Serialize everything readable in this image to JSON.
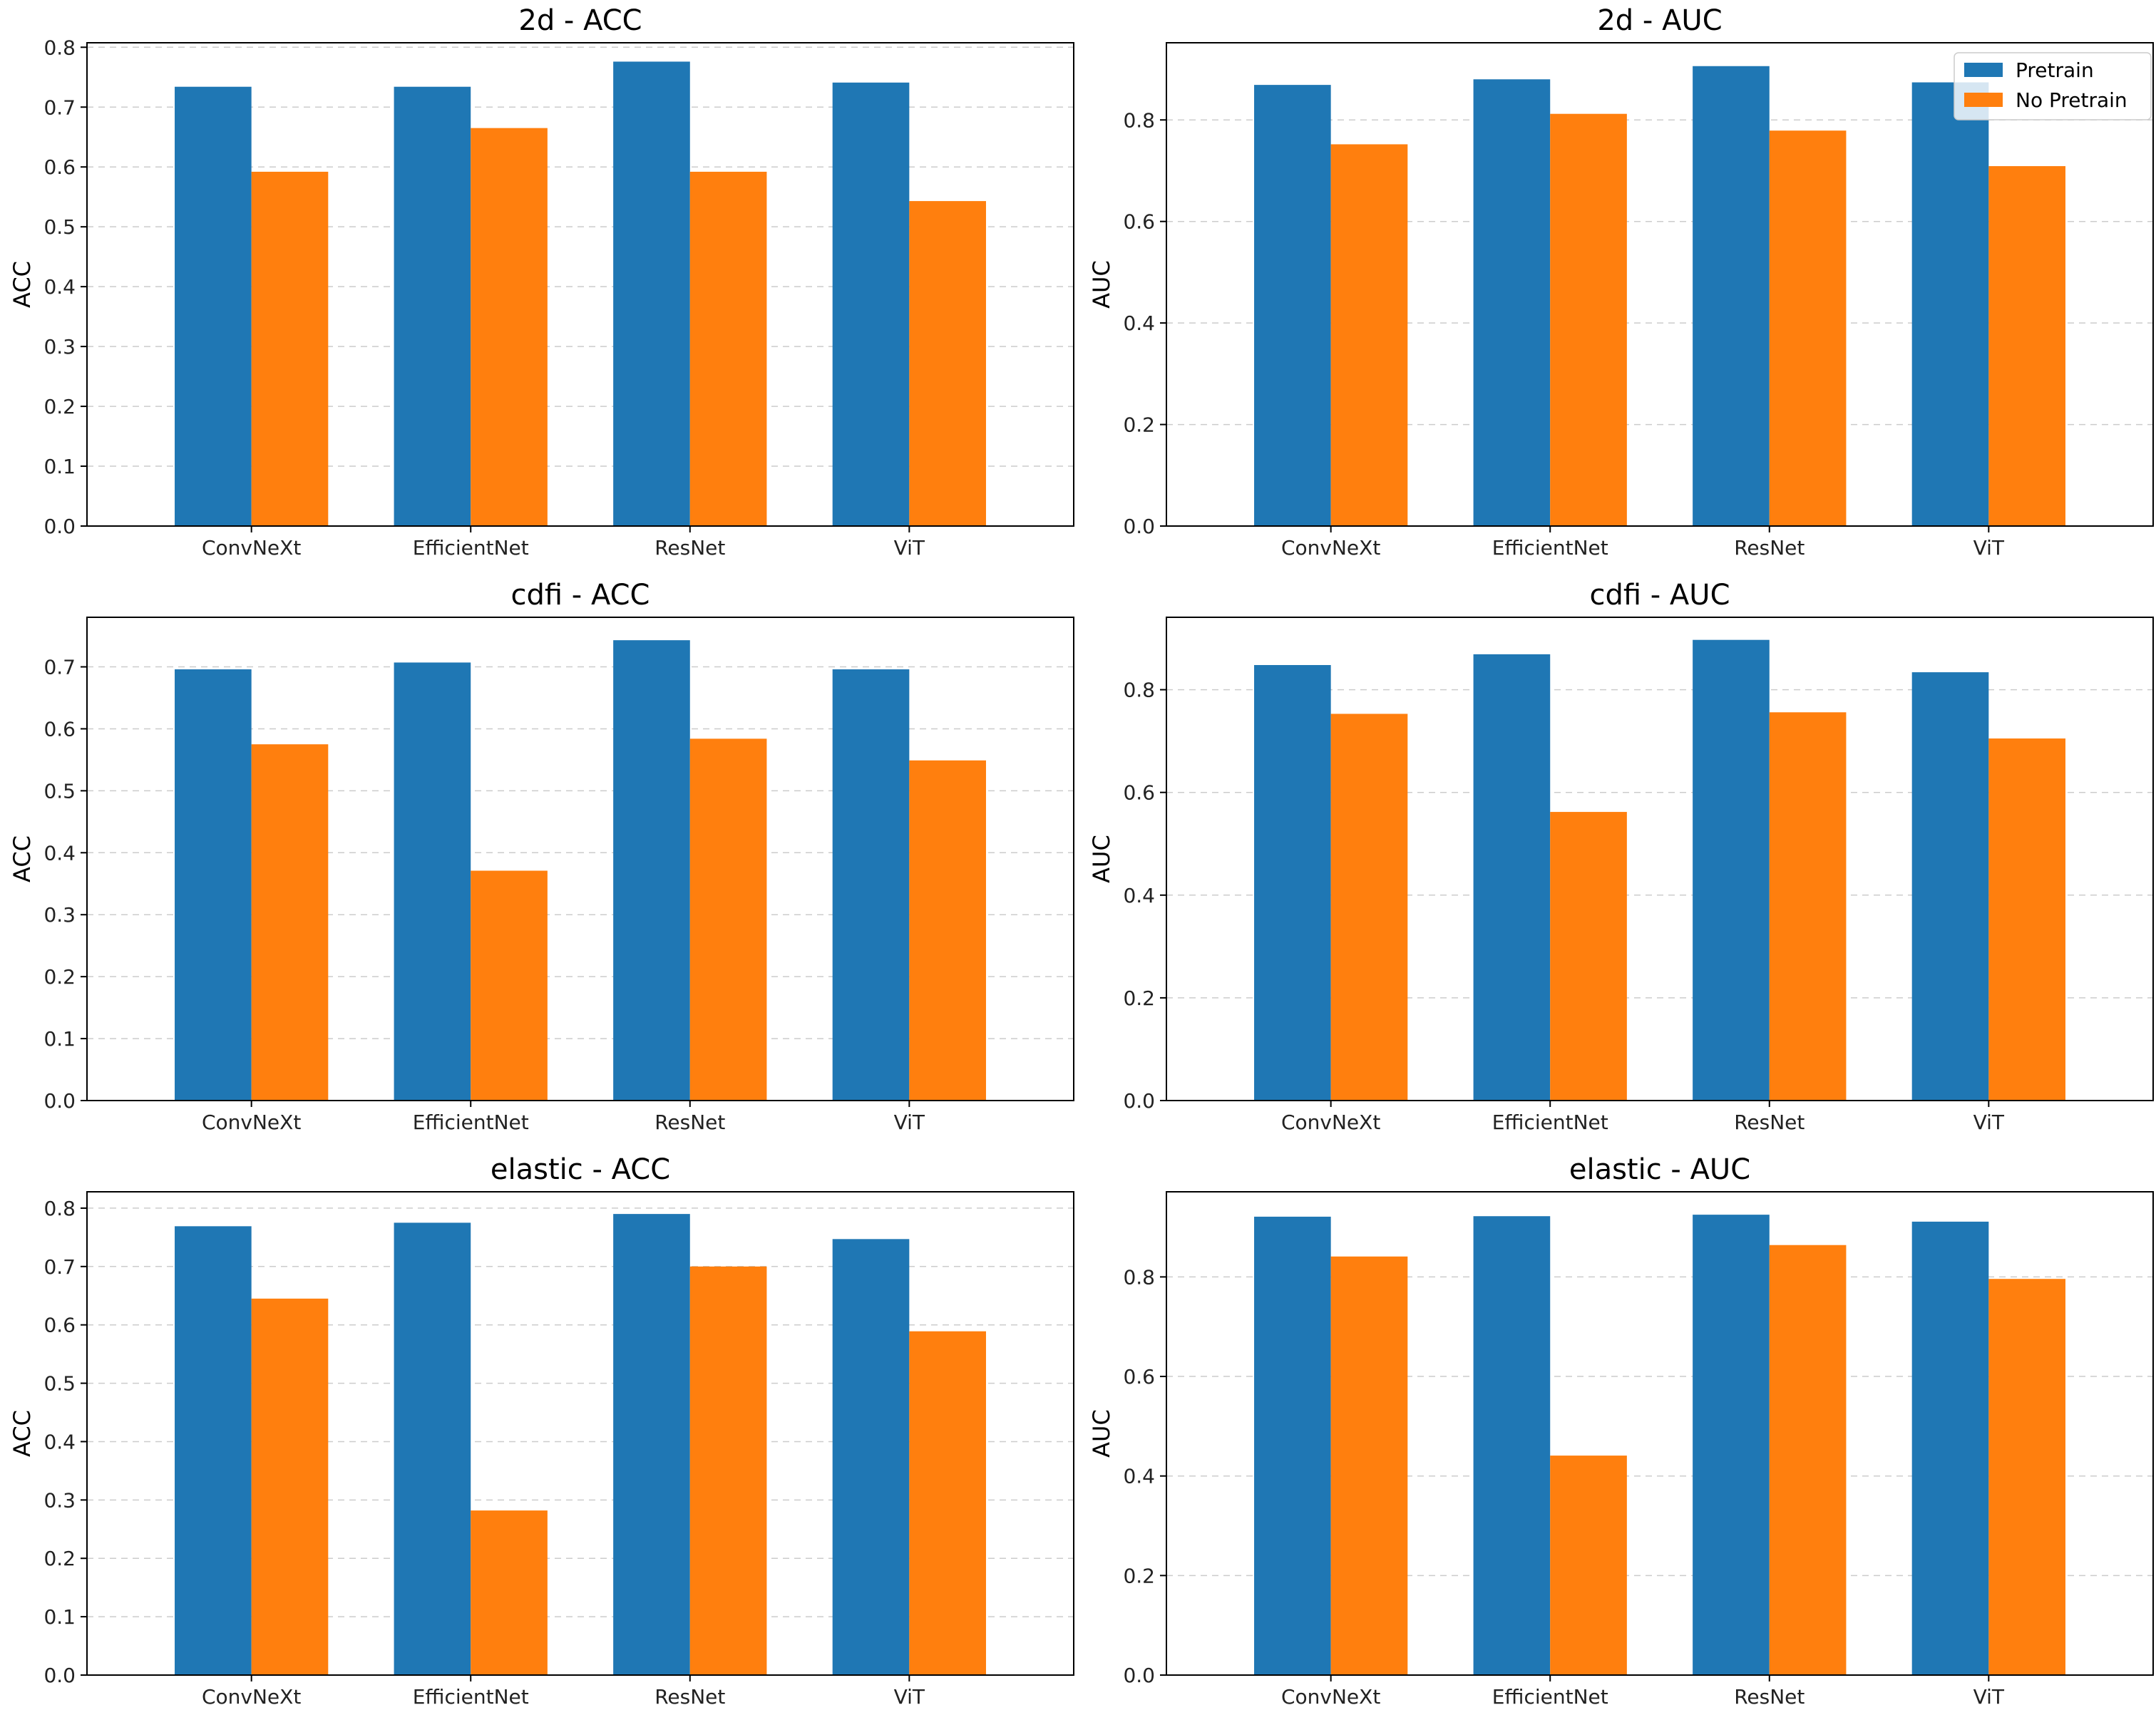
{
  "colors": {
    "pretrain": "#1f77b4",
    "no_pretrain": "#ff7f0e"
  },
  "legend": {
    "placement": "top-right",
    "panel": 1,
    "entries": [
      "Pretrain",
      "No Pretrain"
    ]
  },
  "chart_data": [
    {
      "type": "bar",
      "title": "2d - ACC",
      "xlabel": "",
      "ylabel": "ACC",
      "categories": [
        "ConvNeXt",
        "EfficientNet",
        "ResNet",
        "ViT"
      ],
      "ylim": [
        0,
        0.8075
      ],
      "yticks": [
        0.0,
        0.1,
        0.2,
        0.3,
        0.4,
        0.5,
        0.6,
        0.7,
        0.8
      ],
      "ytick_labels": [
        "0.0",
        "0.1",
        "0.2",
        "0.3",
        "0.4",
        "0.5",
        "0.6",
        "0.7",
        "0.8"
      ],
      "grid": "y-dashed",
      "series": [
        {
          "name": "Pretrain",
          "values": [
            0.734,
            0.734,
            0.776,
            0.741
          ]
        },
        {
          "name": "No Pretrain",
          "values": [
            0.592,
            0.665,
            0.592,
            0.543
          ]
        }
      ]
    },
    {
      "type": "bar",
      "title": "2d - AUC",
      "xlabel": "",
      "ylabel": "AUC",
      "categories": [
        "ConvNeXt",
        "EfficientNet",
        "ResNet",
        "ViT"
      ],
      "ylim": [
        0,
        0.952
      ],
      "yticks": [
        0.0,
        0.2,
        0.4,
        0.6,
        0.8
      ],
      "ytick_labels": [
        "0.0",
        "0.2",
        "0.4",
        "0.6",
        "0.8"
      ],
      "grid": "y-dashed",
      "series": [
        {
          "name": "Pretrain",
          "values": [
            0.869,
            0.88,
            0.906,
            0.874
          ]
        },
        {
          "name": "No Pretrain",
          "values": [
            0.752,
            0.812,
            0.779,
            0.709
          ]
        }
      ]
    },
    {
      "type": "bar",
      "title": "cdfi - ACC",
      "xlabel": "",
      "ylabel": "ACC",
      "categories": [
        "ConvNeXt",
        "EfficientNet",
        "ResNet",
        "ViT"
      ],
      "ylim": [
        0,
        0.78
      ],
      "yticks": [
        0.0,
        0.1,
        0.2,
        0.3,
        0.4,
        0.5,
        0.6,
        0.7
      ],
      "ytick_labels": [
        "0.0",
        "0.1",
        "0.2",
        "0.3",
        "0.4",
        "0.5",
        "0.6",
        "0.7"
      ],
      "grid": "y-dashed",
      "series": [
        {
          "name": "Pretrain",
          "values": [
            0.696,
            0.707,
            0.743,
            0.696
          ]
        },
        {
          "name": "No Pretrain",
          "values": [
            0.575,
            0.371,
            0.584,
            0.549
          ]
        }
      ]
    },
    {
      "type": "bar",
      "title": "cdfi - AUC",
      "xlabel": "",
      "ylabel": "AUC",
      "categories": [
        "ConvNeXt",
        "EfficientNet",
        "ResNet",
        "ViT"
      ],
      "ylim": [
        0,
        0.941
      ],
      "yticks": [
        0.0,
        0.2,
        0.4,
        0.6,
        0.8
      ],
      "ytick_labels": [
        "0.0",
        "0.2",
        "0.4",
        "0.6",
        "0.8"
      ],
      "grid": "y-dashed",
      "series": [
        {
          "name": "Pretrain",
          "values": [
            0.848,
            0.869,
            0.897,
            0.834
          ]
        },
        {
          "name": "No Pretrain",
          "values": [
            0.753,
            0.562,
            0.756,
            0.705
          ]
        }
      ]
    },
    {
      "type": "bar",
      "title": "elastic - ACC",
      "xlabel": "",
      "ylabel": "ACC",
      "categories": [
        "ConvNeXt",
        "EfficientNet",
        "ResNet",
        "ViT"
      ],
      "ylim": [
        0,
        0.828
      ],
      "yticks": [
        0.0,
        0.1,
        0.2,
        0.3,
        0.4,
        0.5,
        0.6,
        0.7,
        0.8
      ],
      "ytick_labels": [
        "0.0",
        "0.1",
        "0.2",
        "0.3",
        "0.4",
        "0.5",
        "0.6",
        "0.7",
        "0.8"
      ],
      "grid": "y-dashed",
      "series": [
        {
          "name": "Pretrain",
          "values": [
            0.769,
            0.775,
            0.79,
            0.747
          ]
        },
        {
          "name": "No Pretrain",
          "values": [
            0.645,
            0.282,
            0.7,
            0.589
          ]
        }
      ]
    },
    {
      "type": "bar",
      "title": "elastic - AUC",
      "xlabel": "",
      "ylabel": "AUC",
      "categories": [
        "ConvNeXt",
        "EfficientNet",
        "ResNet",
        "ViT"
      ],
      "ylim": [
        0,
        0.971
      ],
      "yticks": [
        0.0,
        0.2,
        0.4,
        0.6,
        0.8
      ],
      "ytick_labels": [
        "0.0",
        "0.2",
        "0.4",
        "0.6",
        "0.8"
      ],
      "grid": "y-dashed",
      "series": [
        {
          "name": "Pretrain",
          "values": [
            0.921,
            0.922,
            0.925,
            0.911
          ]
        },
        {
          "name": "No Pretrain",
          "values": [
            0.841,
            0.441,
            0.864,
            0.796
          ]
        }
      ]
    }
  ]
}
